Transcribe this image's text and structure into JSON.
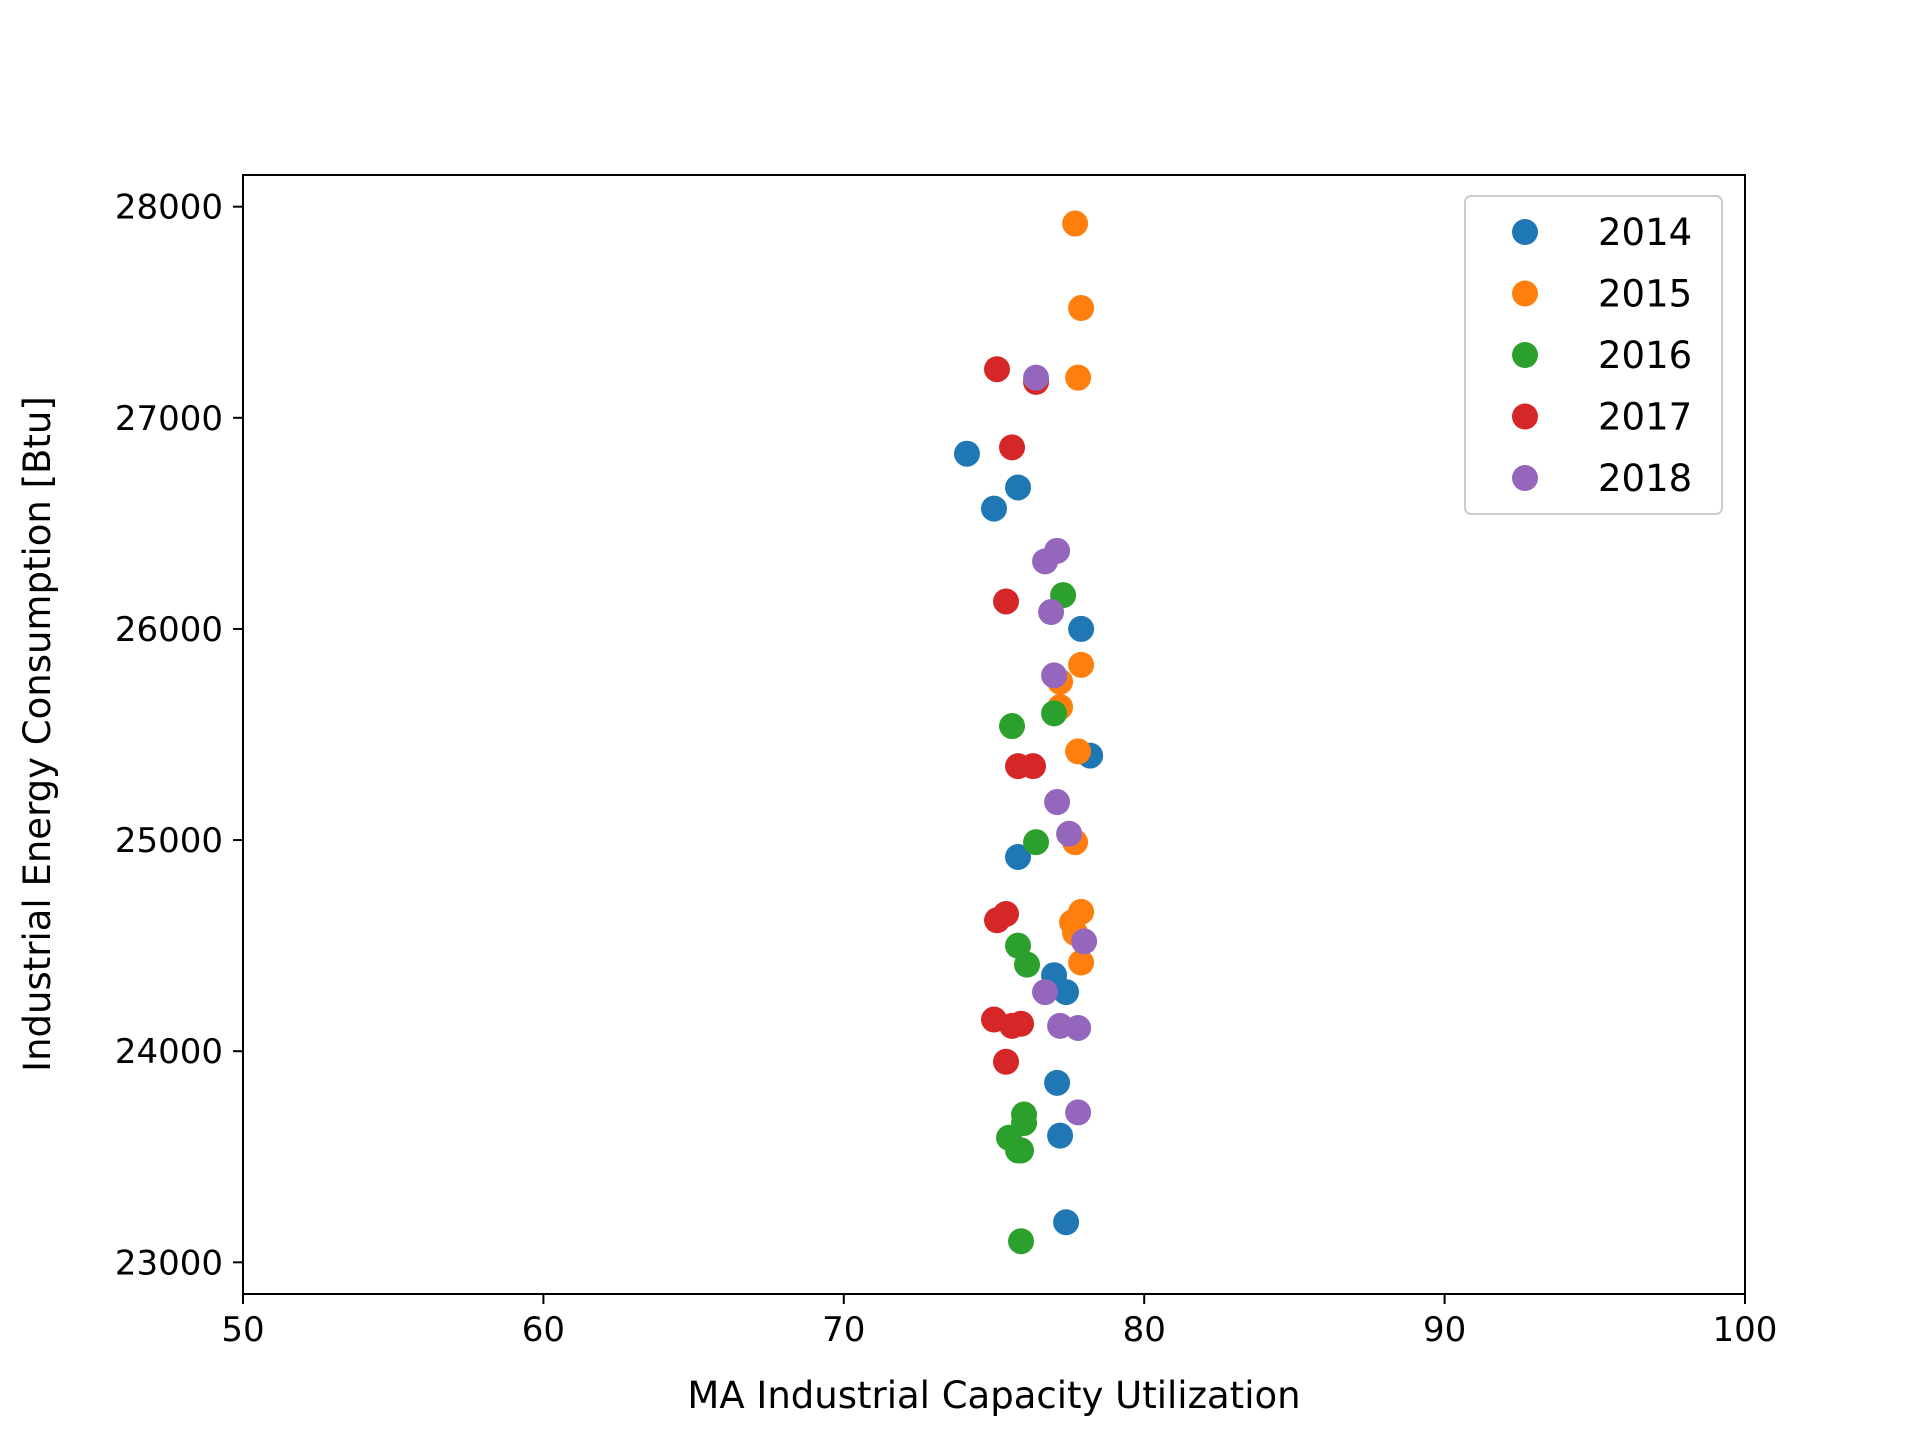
{
  "chart_data": {
    "type": "scatter",
    "xlabel": "MA Industrial Capacity Utilization",
    "ylabel": "Industrial Energy Consumption [Btu]",
    "xlim": [
      50,
      100
    ],
    "ylim": [
      22850,
      28150
    ],
    "xticks": [
      50,
      60,
      70,
      80,
      90,
      100
    ],
    "yticks": [
      23000,
      24000,
      25000,
      26000,
      27000,
      28000
    ],
    "grid": false,
    "legend_position": "top-right",
    "series": [
      {
        "name": "2014",
        "color": "#1f77b4",
        "points": [
          [
            74.1,
            26830
          ],
          [
            75.0,
            26570
          ],
          [
            75.8,
            26670
          ],
          [
            77.9,
            26000
          ],
          [
            78.2,
            25400
          ],
          [
            75.8,
            24920
          ],
          [
            77.0,
            24360
          ],
          [
            77.4,
            24280
          ],
          [
            77.1,
            23850
          ],
          [
            77.2,
            23600
          ],
          [
            77.4,
            23190
          ]
        ]
      },
      {
        "name": "2015",
        "color": "#ff7f0e",
        "points": [
          [
            77.7,
            27920
          ],
          [
            77.9,
            27520
          ],
          [
            77.8,
            27190
          ],
          [
            77.9,
            25830
          ],
          [
            77.2,
            25750
          ],
          [
            77.2,
            25630
          ],
          [
            77.8,
            25420
          ],
          [
            77.7,
            24990
          ],
          [
            77.9,
            24660
          ],
          [
            77.6,
            24610
          ],
          [
            77.7,
            24560
          ],
          [
            77.9,
            24420
          ]
        ]
      },
      {
        "name": "2016",
        "color": "#2ca02c",
        "points": [
          [
            77.3,
            26160
          ],
          [
            75.6,
            25540
          ],
          [
            77.0,
            25600
          ],
          [
            76.4,
            24990
          ],
          [
            75.8,
            24500
          ],
          [
            76.1,
            24410
          ],
          [
            76.0,
            23700
          ],
          [
            76.0,
            23660
          ],
          [
            75.5,
            23590
          ],
          [
            75.8,
            23530
          ],
          [
            75.9,
            23530
          ],
          [
            75.9,
            23100
          ]
        ]
      },
      {
        "name": "2017",
        "color": "#d62728",
        "points": [
          [
            75.1,
            27230
          ],
          [
            76.4,
            27170
          ],
          [
            75.6,
            26860
          ],
          [
            75.4,
            26130
          ],
          [
            75.8,
            25350
          ],
          [
            76.3,
            25350
          ],
          [
            75.1,
            24620
          ],
          [
            75.4,
            24650
          ],
          [
            75.0,
            24150
          ],
          [
            75.6,
            24120
          ],
          [
            75.9,
            24130
          ],
          [
            75.4,
            23950
          ]
        ]
      },
      {
        "name": "2018",
        "color": "#9467bd",
        "points": [
          [
            76.4,
            27190
          ],
          [
            77.1,
            26370
          ],
          [
            76.7,
            26320
          ],
          [
            76.9,
            26080
          ],
          [
            77.0,
            25780
          ],
          [
            77.1,
            25180
          ],
          [
            77.5,
            25030
          ],
          [
            78.0,
            24520
          ],
          [
            76.7,
            24280
          ],
          [
            77.2,
            24120
          ],
          [
            77.8,
            24110
          ],
          [
            77.8,
            23710
          ]
        ]
      }
    ]
  }
}
